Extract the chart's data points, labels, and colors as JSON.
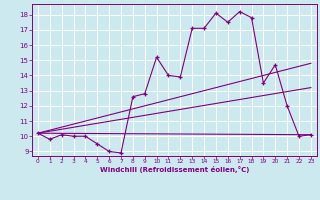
{
  "title": "",
  "xlabel": "Windchill (Refroidissement éolien,°C)",
  "ylabel": "",
  "xlim": [
    -0.5,
    23.5
  ],
  "ylim": [
    8.7,
    18.7
  ],
  "xticks": [
    0,
    1,
    2,
    3,
    4,
    5,
    6,
    7,
    8,
    9,
    10,
    11,
    12,
    13,
    14,
    15,
    16,
    17,
    18,
    19,
    20,
    21,
    22,
    23
  ],
  "yticks": [
    9,
    10,
    11,
    12,
    13,
    14,
    15,
    16,
    17,
    18
  ],
  "bg_color": "#cce9f0",
  "line_color": "#800080",
  "grid_color": "#ffffff",
  "line1": {
    "x": [
      0,
      1,
      2,
      3,
      4,
      5,
      6,
      7,
      8,
      9,
      10,
      11,
      12,
      13,
      14,
      15,
      16,
      17,
      18,
      19,
      20,
      21,
      22,
      23
    ],
    "y": [
      10.2,
      9.8,
      10.1,
      10.0,
      10.0,
      9.5,
      9.0,
      8.9,
      12.6,
      12.8,
      15.2,
      14.0,
      13.9,
      17.1,
      17.1,
      18.1,
      17.5,
      18.2,
      17.8,
      13.5,
      14.7,
      12.0,
      10.0,
      10.1
    ]
  },
  "line2": {
    "x": [
      0,
      23
    ],
    "y": [
      10.2,
      10.1
    ]
  },
  "line3": {
    "x": [
      0,
      23
    ],
    "y": [
      10.2,
      13.2
    ]
  },
  "line4": {
    "x": [
      0,
      23
    ],
    "y": [
      10.2,
      14.8
    ]
  }
}
